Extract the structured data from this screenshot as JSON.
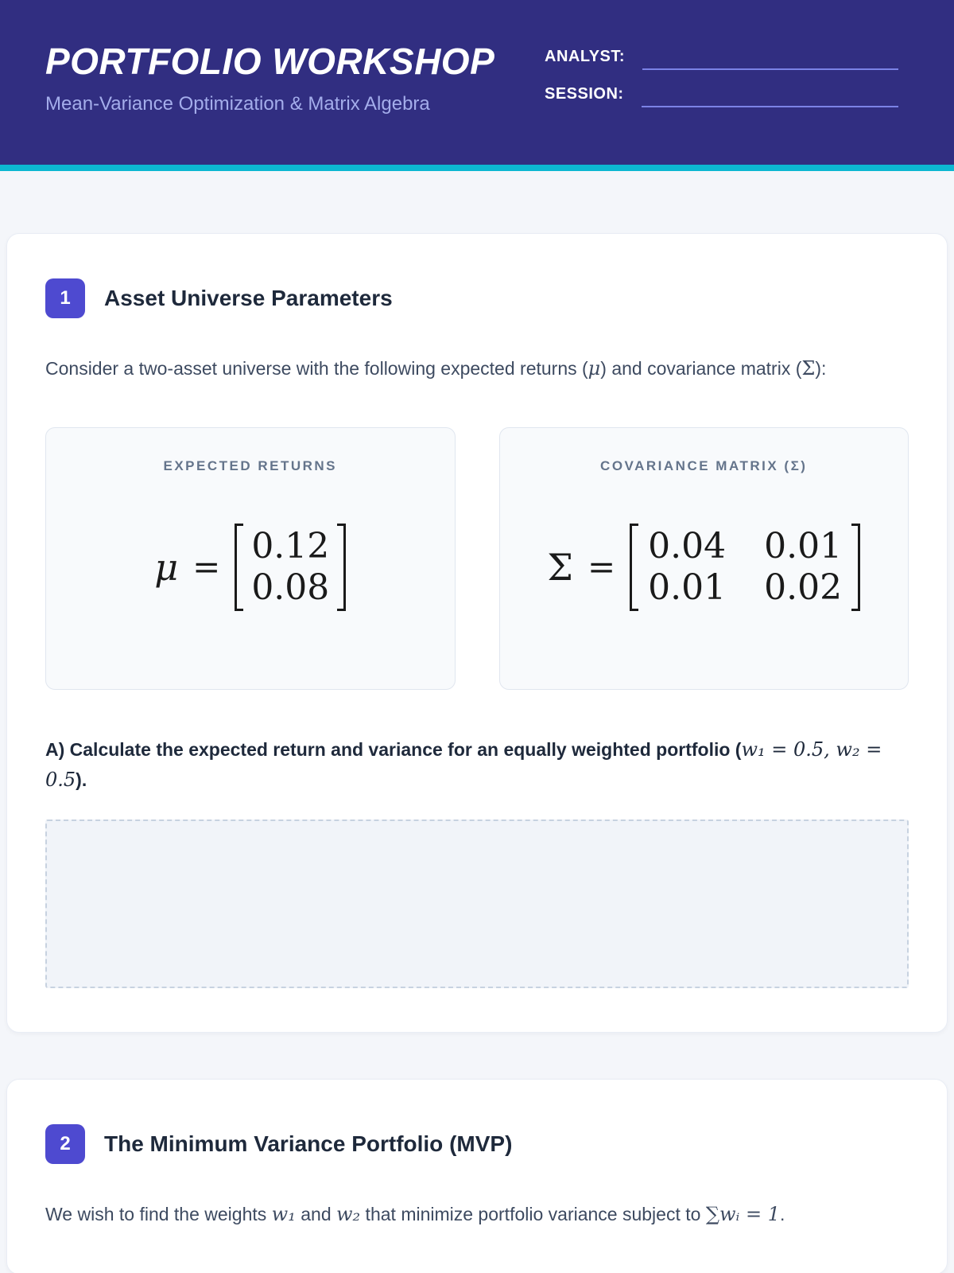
{
  "colors": {
    "header_bg": "#312e81",
    "accent_badge": "#4e4ad0",
    "teal_accent": "#0cb7d1",
    "underline": "#7b82e6"
  },
  "header": {
    "title": "PORTFOLIO WORKSHOP",
    "subtitle": "Mean-Variance Optimization & Matrix Algebra",
    "analyst_label": "ANALYST:",
    "session_label": "SESSION:"
  },
  "section1": {
    "number": "1",
    "title": "Asset Universe Parameters",
    "intro_parts": [
      "Consider a two-asset universe with the following expected returns (",
      "μ",
      ") and covariance matrix (",
      "Σ",
      "):"
    ],
    "returns": {
      "label": "EXPECTED RETURNS",
      "symbol": "μ",
      "eq": "=",
      "values": [
        "0.12",
        "0.08"
      ]
    },
    "covariance": {
      "label": "COVARIANCE MATRIX (Σ)",
      "symbol": "Σ",
      "eq": "=",
      "cells": [
        "0.04",
        "0.01",
        "0.01",
        "0.02"
      ]
    },
    "question_parts": [
      "A) Calculate the expected return and variance for an equally weighted portfolio (",
      "w₁ = 0.5, w₂ = 0.5",
      ")."
    ]
  },
  "section2": {
    "number": "2",
    "title": "The Minimum Variance Portfolio (MVP)",
    "intro_parts": [
      "We wish to find the weights ",
      "w₁",
      " and ",
      "w₂",
      " that minimize portfolio variance subject to ",
      "∑wᵢ = 1",
      "."
    ]
  }
}
